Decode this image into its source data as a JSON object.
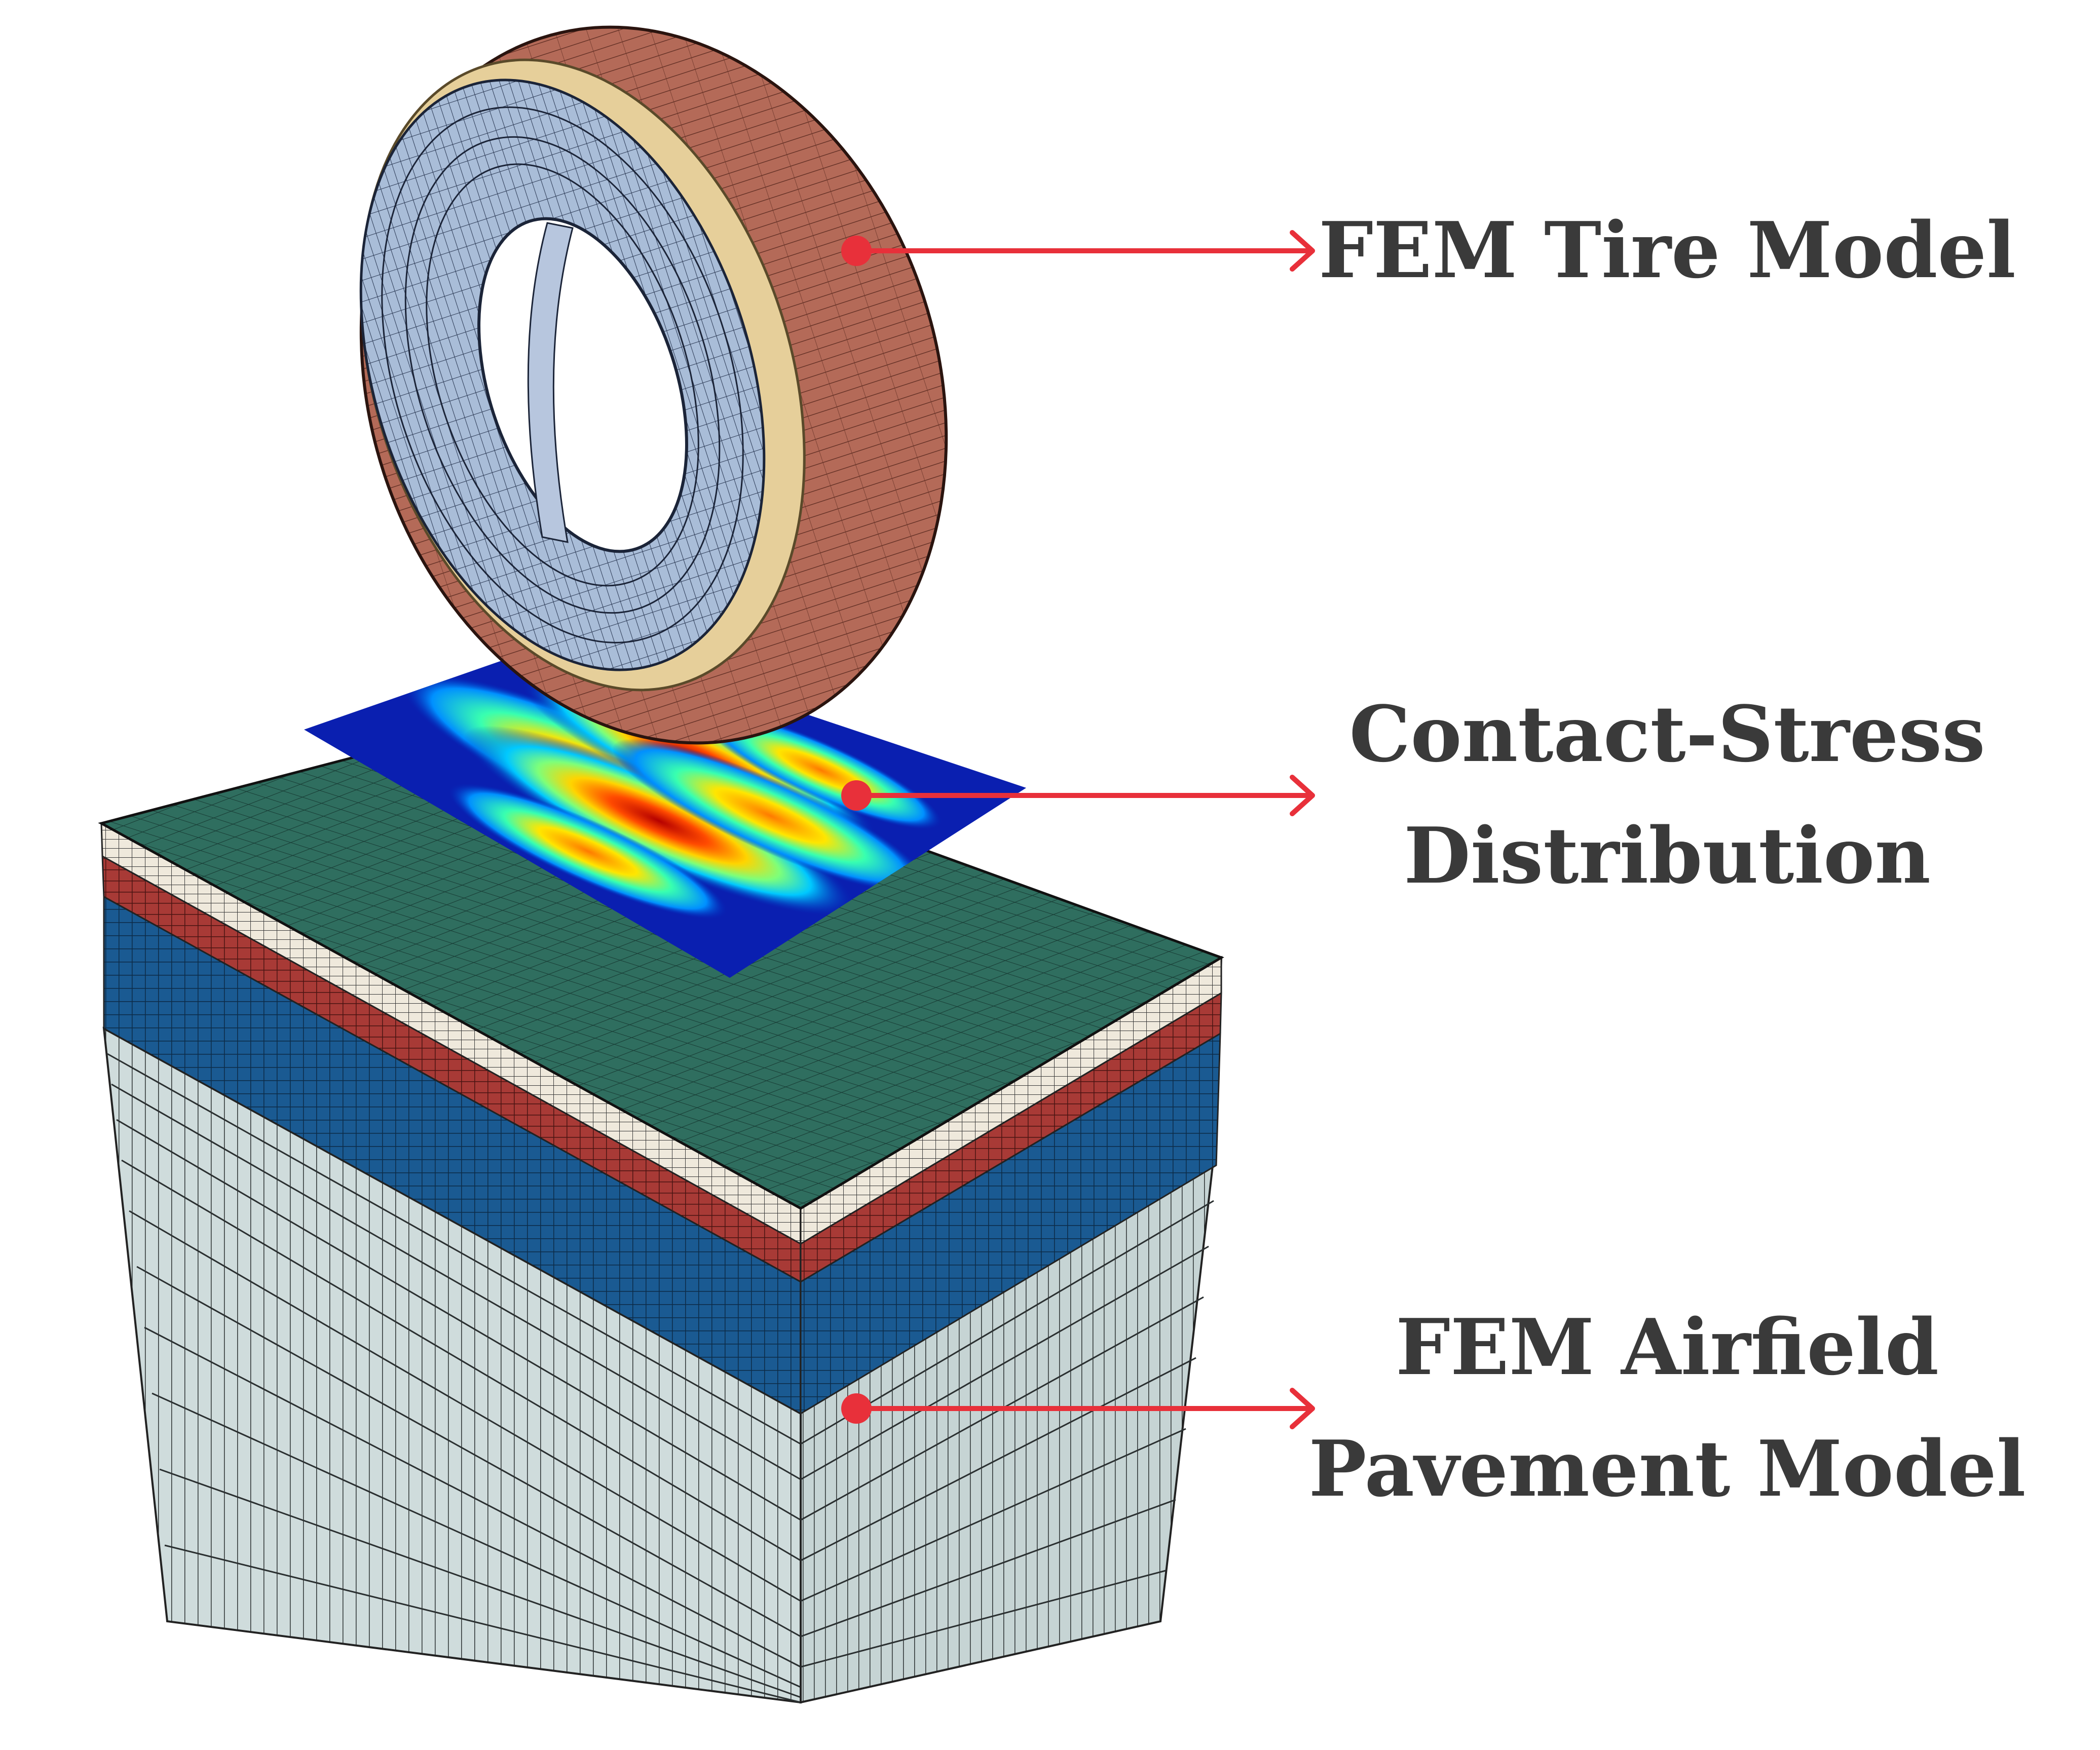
{
  "callouts": [
    {
      "id": "tire",
      "lines": [
        "FEM Tire Model"
      ]
    },
    {
      "id": "contact",
      "lines": [
        "Contact-Stress",
        "Distribution"
      ]
    },
    {
      "id": "pavement",
      "lines": [
        "FEM Airfield",
        "Pavement Model"
      ]
    }
  ],
  "colors": {
    "arrow": "#e8303a",
    "label_text": "#3a3a3a",
    "pavement_top": "#2f6e5f",
    "pavement_layer_white": "#efe9dc",
    "pavement_layer_red": "#a83a36",
    "pavement_layer_blue": "#1a5a92",
    "pavement_subgrade": "#cfdcdc",
    "tire_tread": "#b46a58",
    "tire_sidewall": "#a9bdd8",
    "tire_bead": "#e6cf9a",
    "mesh_line": "#1b1b1b"
  },
  "icons": {
    "arrow_head": "arrow-right-icon",
    "arrow_tail": "dot-icon"
  }
}
